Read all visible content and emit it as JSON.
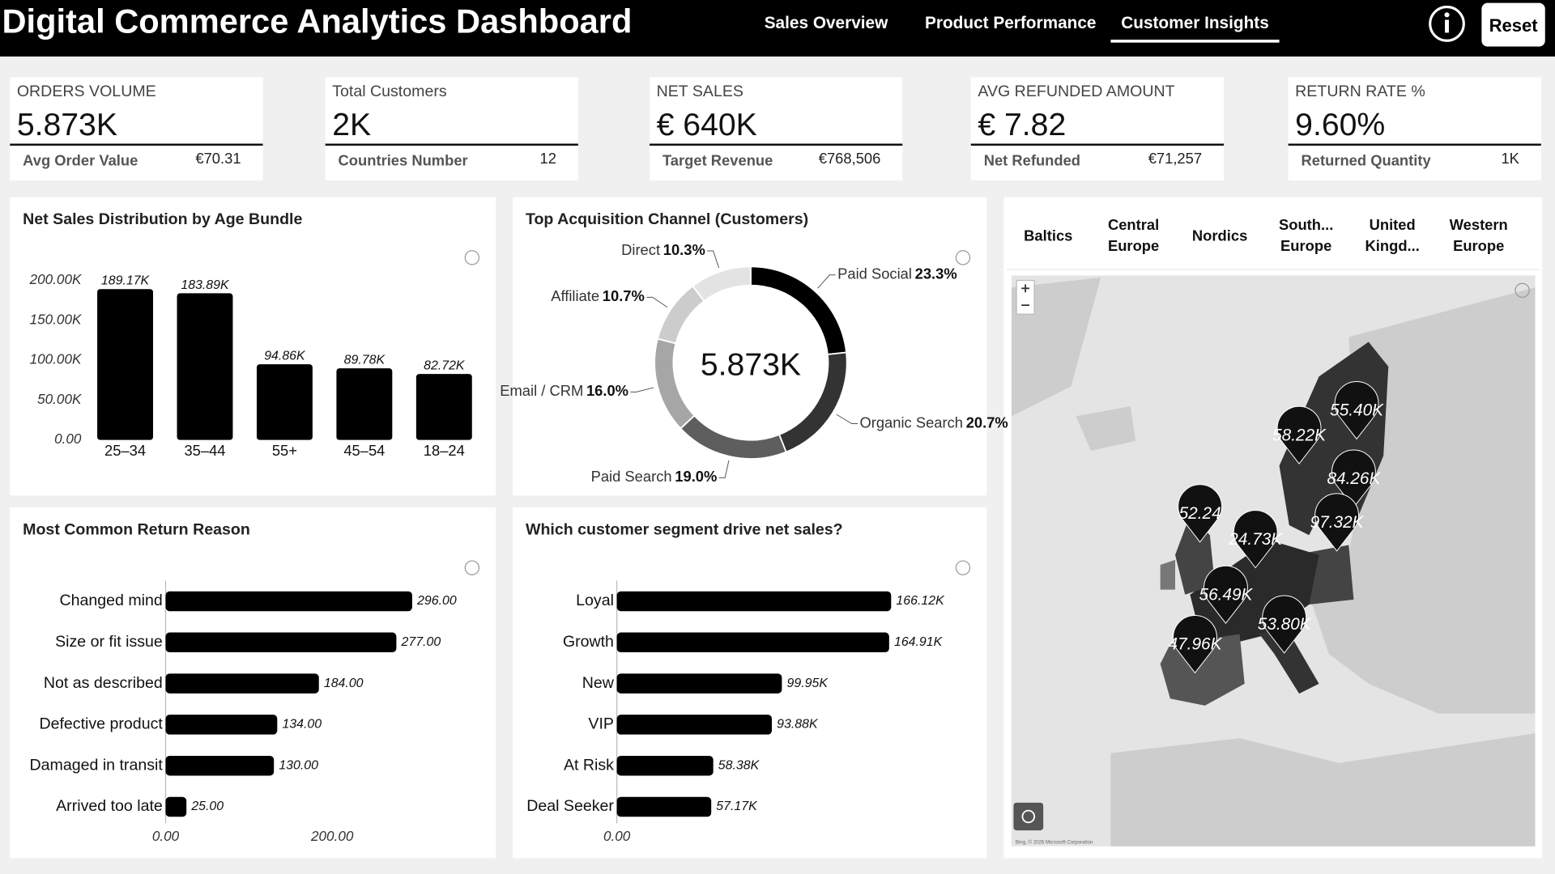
{
  "header": {
    "title": "Digital Commerce Analytics Dashboard",
    "nav": [
      "Sales Overview",
      "Product Performance",
      "Customer Insights"
    ],
    "active_tab": 2,
    "button": "Reset"
  },
  "kpis": [
    {
      "label": "ORDERS VOLUME",
      "value": "5.873K",
      "sub_label": "Avg Order Value",
      "sub_value": "€70.31"
    },
    {
      "label": "Total Customers",
      "value": "2K",
      "sub_label": "Countries Number",
      "sub_value": "12"
    },
    {
      "label": "NET SALES",
      "value": "€ 640K",
      "sub_label": "Target Revenue",
      "sub_value": "€768,506"
    },
    {
      "label": "AVG REFUNDED AMOUNT",
      "value": "€ 7.82",
      "sub_label": "Net Refunded",
      "sub_value": "€71,257"
    },
    {
      "label": "RETURN RATE %",
      "value": "9.60%",
      "sub_label": "Returned Quantity",
      "sub_value": "1K"
    }
  ],
  "chart_data": [
    {
      "type": "bar",
      "title": "Net Sales Distribution by Age Bundle",
      "categories": [
        "25–34",
        "35–44",
        "55+",
        "45–54",
        "18–24"
      ],
      "values": [
        189170,
        183890,
        94860,
        89780,
        82720
      ],
      "value_labels": [
        "189.17K",
        "183.89K",
        "94.86K",
        "89.78K",
        "82.72K"
      ],
      "color": "#000000",
      "ylim": [
        0,
        200000
      ],
      "yticks": [
        {
          "value": 0,
          "label": "0.00"
        },
        {
          "value": 50000,
          "label": "50.00K"
        },
        {
          "value": 100000,
          "label": "100.00K"
        },
        {
          "value": 150000,
          "label": "150.00K"
        },
        {
          "value": 200000,
          "label": "200.00K"
        }
      ]
    },
    {
      "type": "pie",
      "title": "Top Acquisition Channel (Customers)",
      "center_label": "5.873K",
      "categories": [
        "Paid Social",
        "Organic Search",
        "Paid Search",
        "Email / CRM",
        "Affiliate",
        "Direct"
      ],
      "values": [
        23.3,
        20.7,
        19.0,
        16.0,
        10.7,
        10.3
      ],
      "value_labels": [
        "23.3%",
        "20.7%",
        "19.0%",
        "16.0%",
        "10.7%",
        "10.3%"
      ],
      "colors": [
        "#000000",
        "#333333",
        "#5e5e5e",
        "#a6a6a6",
        "#cccccc",
        "#e3e3e3"
      ]
    },
    {
      "type": "hbar",
      "title": "Most Common Return Reason",
      "categories": [
        "Changed mind",
        "Size or fit issue",
        "Not as described",
        "Defective product",
        "Damaged in transit",
        "Arrived too late"
      ],
      "values": [
        296,
        277,
        184,
        134,
        130,
        25
      ],
      "value_labels": [
        "296.00",
        "277.00",
        "184.00",
        "134.00",
        "130.00",
        "25.00"
      ],
      "color": "#000000",
      "xlim": [
        0,
        350
      ],
      "xticks": [
        {
          "value": 0,
          "label": "0.00"
        },
        {
          "value": 200,
          "label": "200.00"
        }
      ]
    },
    {
      "type": "hbar",
      "title": "Which customer segment drive net sales?",
      "categories": [
        "Loyal",
        "Growth",
        "New",
        "VIP",
        "At Risk",
        "Deal Seeker"
      ],
      "values": [
        166120,
        164910,
        99950,
        93880,
        58380,
        57170
      ],
      "value_labels": [
        "166.12K",
        "164.91K",
        "99.95K",
        "93.88K",
        "58.38K",
        "57.17K"
      ],
      "color": "#000000",
      "xlim": [
        0,
        200000
      ],
      "xticks": [
        {
          "value": 0,
          "label": "0.00"
        }
      ]
    }
  ],
  "map": {
    "tabs": [
      "Baltics",
      "Central Europe",
      "Nordics",
      "South... Europe",
      "United Kingd...",
      "Western Europe"
    ],
    "pins": [
      "55.40K",
      "58.22K",
      "84.26K",
      "97.32K",
      "52.24",
      "24.73K",
      "56.49K",
      "53.80K",
      "47.96K"
    ],
    "attribution": "Bing, © 2026 Microsoft Corporation"
  }
}
